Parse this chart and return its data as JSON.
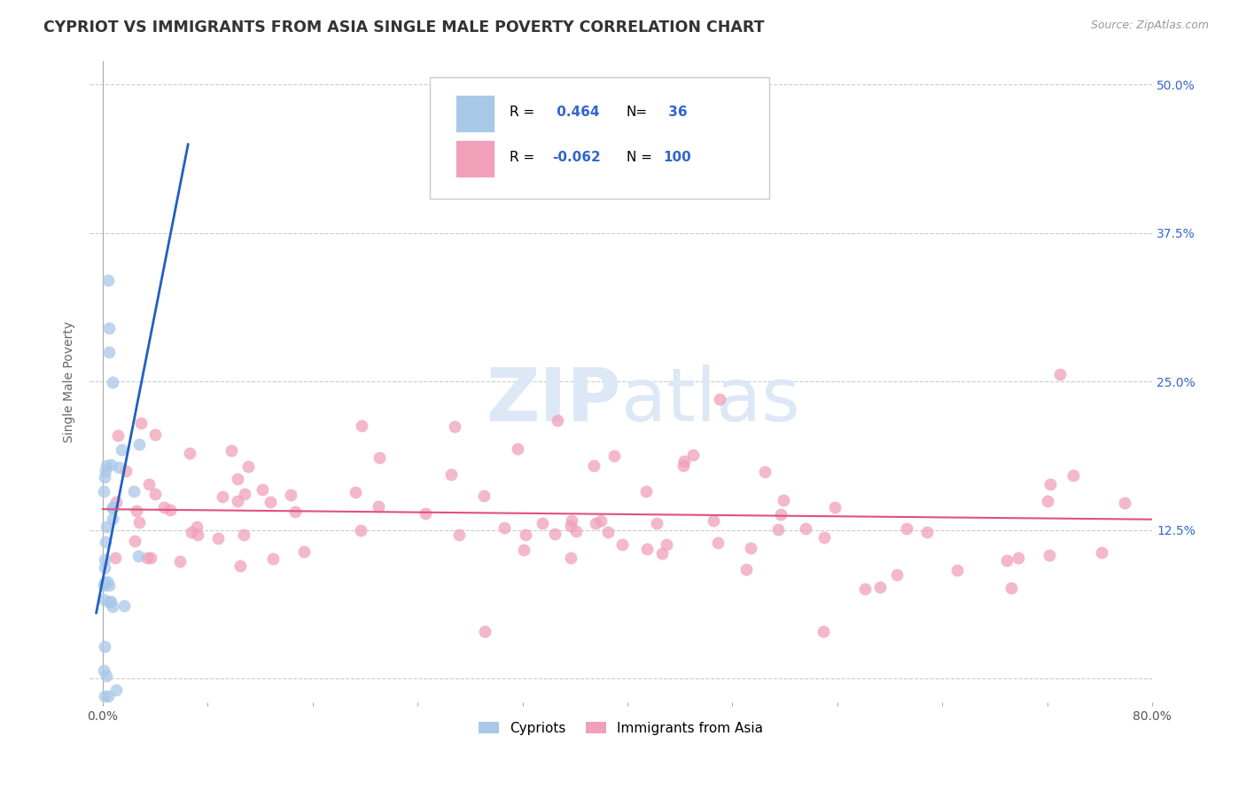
{
  "title": "CYPRIOT VS IMMIGRANTS FROM ASIA SINGLE MALE POVERTY CORRELATION CHART",
  "source": "Source: ZipAtlas.com",
  "ylabel": "Single Male Poverty",
  "xmin": 0.0,
  "xmax": 0.8,
  "ymin": -0.02,
  "ymax": 0.52,
  "ytick_vals": [
    0.0,
    0.125,
    0.25,
    0.375,
    0.5
  ],
  "ytick_labels": [
    "",
    "12.5%",
    "25.0%",
    "37.5%",
    "50.0%"
  ],
  "xtick_vals": [
    0.0,
    0.08,
    0.16,
    0.24,
    0.32,
    0.4,
    0.48,
    0.56,
    0.64,
    0.72,
    0.8
  ],
  "xtick_labels": [
    "0.0%",
    "",
    "",
    "",
    "",
    "",
    "",
    "",
    "",
    "",
    "80.0%"
  ],
  "r_blue": 0.464,
  "n_blue": 36,
  "r_pink": -0.062,
  "n_pink": 100,
  "scatter_blue_color": "#a8c8e8",
  "scatter_pink_color": "#f0a0b8",
  "blue_line_color": "#2060c0",
  "pink_line_color": "#e05080",
  "grid_color": "#cccccc",
  "background_color": "#ffffff",
  "watermark_color": "#dce8f5",
  "legend_text_color": "#3366cc",
  "legend_box_color": "#e8f0f8",
  "legend_border_color": "#c0ccd8"
}
